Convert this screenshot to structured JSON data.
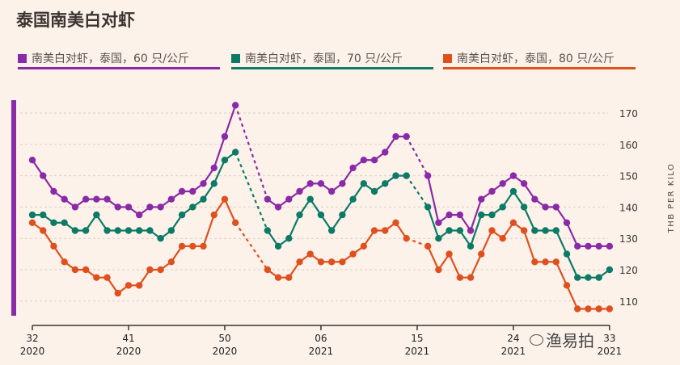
{
  "chart_data": {
    "type": "line",
    "title": "泰国南美白对虾",
    "ylabel": "THB PER KILO",
    "xlabel": "",
    "ylim": [
      105,
      172.5
    ],
    "yticks": [
      110,
      120,
      130,
      140,
      150,
      160,
      170
    ],
    "grid": true,
    "legend_position": "top",
    "x_ticks": [
      {
        "index": 0,
        "week": "32",
        "year": "2020"
      },
      {
        "index": 9,
        "week": "41",
        "year": "2020"
      },
      {
        "index": 18,
        "week": "50",
        "year": "2020"
      },
      {
        "index": 27,
        "week": "06",
        "year": "2021"
      },
      {
        "index": 36,
        "week": "15",
        "year": "2021"
      },
      {
        "index": 45,
        "week": "24",
        "year": "2021"
      },
      {
        "index": 54,
        "week": "33",
        "year": "2021"
      }
    ],
    "x_note": "weekly points from week 32/2020 to week 33/2021; null = no data (dashed connector)",
    "series": [
      {
        "name": "南美白对虾，泰国，60 只/公斤",
        "color": "#8b2aa8",
        "values": [
          155,
          150,
          145,
          142.5,
          140,
          142.5,
          142.5,
          142.5,
          140,
          140,
          137.5,
          140,
          140,
          142.5,
          145,
          145,
          147.5,
          152.5,
          162.5,
          172.5,
          null,
          null,
          142.5,
          140,
          142.5,
          145,
          147.5,
          147.5,
          145,
          147.5,
          152.5,
          155,
          155,
          157.5,
          162.5,
          162.5,
          null,
          150,
          135,
          137.5,
          137.5,
          132.5,
          142.5,
          145,
          147.5,
          150,
          147.5,
          142.5,
          140,
          140,
          135,
          127.5,
          127.5,
          127.5,
          127.5
        ]
      },
      {
        "name": "南美白对虾，泰国，70 只/公斤",
        "color": "#0b7a66",
        "values": [
          137.5,
          137.5,
          135,
          135,
          132.5,
          132.5,
          137.5,
          132.5,
          132.5,
          132.5,
          132.5,
          132.5,
          130,
          132.5,
          137.5,
          140,
          142.5,
          147.5,
          155,
          157.5,
          null,
          null,
          132.5,
          127.5,
          130,
          137.5,
          142.5,
          137.5,
          132.5,
          137.5,
          142.5,
          147.5,
          145,
          147.5,
          150,
          150,
          null,
          140,
          130,
          132.5,
          132.5,
          127.5,
          137.5,
          137.5,
          140,
          145,
          140,
          132.5,
          132.5,
          132.5,
          125,
          117.5,
          117.5,
          117.5,
          120
        ]
      },
      {
        "name": "南美白对虾，泰国，80 只/公斤",
        "color": "#e0501e",
        "values": [
          135,
          132.5,
          127.5,
          122.5,
          120,
          120,
          117.5,
          117.5,
          112.5,
          115,
          115,
          120,
          120,
          122.5,
          127.5,
          127.5,
          127.5,
          137.5,
          142.5,
          135,
          null,
          null,
          120,
          117.5,
          117.5,
          122.5,
          125,
          122.5,
          122.5,
          122.5,
          125,
          127.5,
          132.5,
          132.5,
          135,
          130,
          null,
          127.5,
          120,
          125,
          117.5,
          117.5,
          125,
          132.5,
          130,
          135,
          132.5,
          122.5,
          122.5,
          122.5,
          115,
          107.5,
          107.5,
          107.5,
          107.5
        ]
      }
    ]
  },
  "watermark": "渔易拍"
}
